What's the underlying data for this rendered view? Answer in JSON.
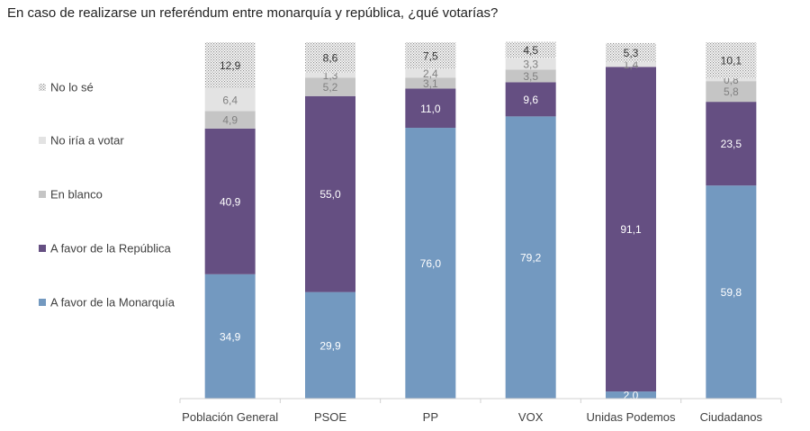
{
  "chart_data": {
    "type": "bar",
    "stacked": true,
    "title": "En caso de realizarse un referéndum entre monarquía y república, ¿qué votarías?",
    "categories": [
      "Población General",
      "PSOE",
      "PP",
      "VOX",
      "Unidas Podemos",
      "Ciudadanos"
    ],
    "series": [
      {
        "name": "A favor de la Monarquía",
        "color": "#7399c0",
        "values": [
          34.9,
          29.9,
          76.0,
          79.2,
          2.0,
          59.8
        ],
        "labels": [
          "34,9",
          "29,9",
          "76,0",
          "79,2",
          "2,0",
          "59,8"
        ]
      },
      {
        "name": "A favor de la República",
        "color": "#654f82",
        "values": [
          40.9,
          55.0,
          11.0,
          9.6,
          91.1,
          23.5
        ],
        "labels": [
          "40,9",
          "55,0",
          "11,0",
          "9,6",
          "91,1",
          "23,5"
        ]
      },
      {
        "name": "En blanco",
        "color": "#c5c5c5",
        "values": [
          4.9,
          5.2,
          3.1,
          3.5,
          0.0,
          5.8
        ],
        "labels": [
          "4,9",
          "5,2",
          "3,1",
          "3,5",
          "",
          "5,8"
        ]
      },
      {
        "name": "No iría a votar",
        "color": "#e3e3e3",
        "values": [
          6.4,
          1.3,
          2.4,
          3.3,
          1.4,
          0.8
        ],
        "labels": [
          "6,4",
          "1,3",
          "2,4",
          "3,3",
          "1,4",
          "0,8"
        ]
      },
      {
        "name": "No lo sé",
        "color": "#d9d9d9",
        "pattern": "dotted",
        "values": [
          12.9,
          8.6,
          7.5,
          4.5,
          5.3,
          10.1
        ],
        "labels": [
          "12,9",
          "8,6",
          "7,5",
          "4,5",
          "5,3",
          "10,1"
        ]
      }
    ],
    "legend_position": "left",
    "grid": false,
    "ylim": [
      0,
      100
    ]
  }
}
